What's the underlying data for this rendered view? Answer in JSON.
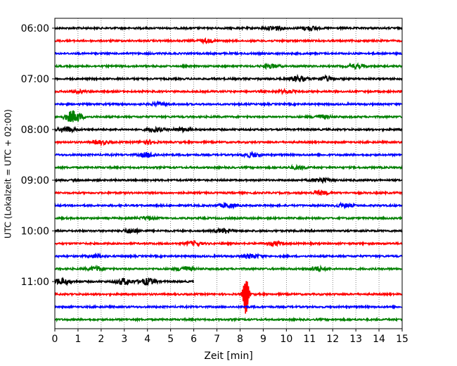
{
  "chart_data": {
    "type": "line",
    "title": "",
    "xlabel": "Zeit  [min]",
    "ylabel": "UTC (Lokalzeit = UTC + 02:00)",
    "xlim": [
      0,
      15
    ],
    "x_ticks": [
      "0",
      "1",
      "2",
      "3",
      "4",
      "5",
      "6",
      "7",
      "8",
      "9",
      "10",
      "11",
      "12",
      "13",
      "14",
      "15"
    ],
    "y_ticks": [
      "06:00",
      "07:00",
      "08:00",
      "09:00",
      "10:00",
      "11:00"
    ],
    "row_interval_min": 15,
    "grid": "vertical dotted",
    "color_cycle": [
      "#000000",
      "#ff0000",
      "#0000ff",
      "#008000"
    ],
    "rows": [
      {
        "start": "06:00",
        "color": "#000000",
        "complete": true,
        "events": [
          [
            9.5,
            0.5
          ],
          [
            11,
            0.4
          ]
        ]
      },
      {
        "start": "06:15",
        "color": "#ff0000",
        "complete": true,
        "events": [
          [
            6.5,
            0.35
          ]
        ]
      },
      {
        "start": "06:30",
        "color": "#0000ff",
        "complete": true,
        "events": []
      },
      {
        "start": "06:45",
        "color": "#008000",
        "complete": true,
        "events": [
          [
            9.3,
            0.45
          ],
          [
            13,
            0.4
          ]
        ]
      },
      {
        "start": "07:00",
        "color": "#000000",
        "complete": true,
        "events": [
          [
            10.5,
            0.6
          ],
          [
            11.7,
            0.5
          ]
        ]
      },
      {
        "start": "07:15",
        "color": "#ff0000",
        "complete": true,
        "events": [
          [
            1,
            0.3
          ],
          [
            10,
            0.3
          ]
        ]
      },
      {
        "start": "07:30",
        "color": "#0000ff",
        "complete": true,
        "events": [
          [
            4.5,
            0.35
          ]
        ]
      },
      {
        "start": "07:45",
        "color": "#008000",
        "complete": true,
        "events": [
          [
            0.8,
            1.4
          ],
          [
            11.5,
            0.4
          ]
        ]
      },
      {
        "start": "08:00",
        "color": "#000000",
        "complete": true,
        "events": [
          [
            0.5,
            0.6
          ],
          [
            4.3,
            0.5
          ],
          [
            5.5,
            0.4
          ]
        ]
      },
      {
        "start": "08:15",
        "color": "#ff0000",
        "complete": true,
        "events": [
          [
            2,
            0.4
          ],
          [
            4,
            0.4
          ]
        ]
      },
      {
        "start": "08:30",
        "color": "#0000ff",
        "complete": true,
        "events": [
          [
            4,
            0.5
          ],
          [
            8.5,
            0.5
          ]
        ]
      },
      {
        "start": "08:45",
        "color": "#008000",
        "complete": true,
        "events": [
          [
            10.5,
            0.35
          ]
        ]
      },
      {
        "start": "09:00",
        "color": "#000000",
        "complete": true,
        "events": [
          [
            11.5,
            0.5
          ]
        ]
      },
      {
        "start": "09:15",
        "color": "#ff0000",
        "complete": true,
        "events": [
          [
            11.5,
            0.4
          ]
        ]
      },
      {
        "start": "09:30",
        "color": "#0000ff",
        "complete": true,
        "events": [
          [
            7.5,
            0.5
          ],
          [
            12.5,
            0.4
          ]
        ]
      },
      {
        "start": "09:45",
        "color": "#008000",
        "complete": true,
        "events": [
          [
            4,
            0.3
          ]
        ]
      },
      {
        "start": "10:00",
        "color": "#000000",
        "complete": true,
        "events": [
          [
            3.3,
            0.5
          ],
          [
            7.3,
            0.5
          ]
        ]
      },
      {
        "start": "10:15",
        "color": "#ff0000",
        "complete": true,
        "events": [
          [
            6,
            0.45
          ],
          [
            9.5,
            0.4
          ]
        ]
      },
      {
        "start": "10:30",
        "color": "#0000ff",
        "complete": true,
        "events": [
          [
            1.8,
            0.4
          ],
          [
            8.5,
            0.45
          ]
        ]
      },
      {
        "start": "10:45",
        "color": "#008000",
        "complete": true,
        "events": [
          [
            1.8,
            0.5
          ],
          [
            5.6,
            0.5
          ],
          [
            11.3,
            0.5
          ]
        ]
      },
      {
        "start": "11:00",
        "color": "#000000",
        "complete": false,
        "end_min": 6,
        "events": [
          [
            0.3,
            0.7
          ],
          [
            3,
            0.7
          ],
          [
            4,
            0.7
          ]
        ]
      },
      {
        "start": "11:15",
        "color": "#ff0000",
        "complete": true,
        "events": [
          [
            8.25,
            4.5
          ]
        ]
      },
      {
        "start": "11:30",
        "color": "#0000ff",
        "complete": true,
        "events": []
      },
      {
        "start": "11:45",
        "color": "#008000",
        "complete": true,
        "events": []
      }
    ]
  }
}
